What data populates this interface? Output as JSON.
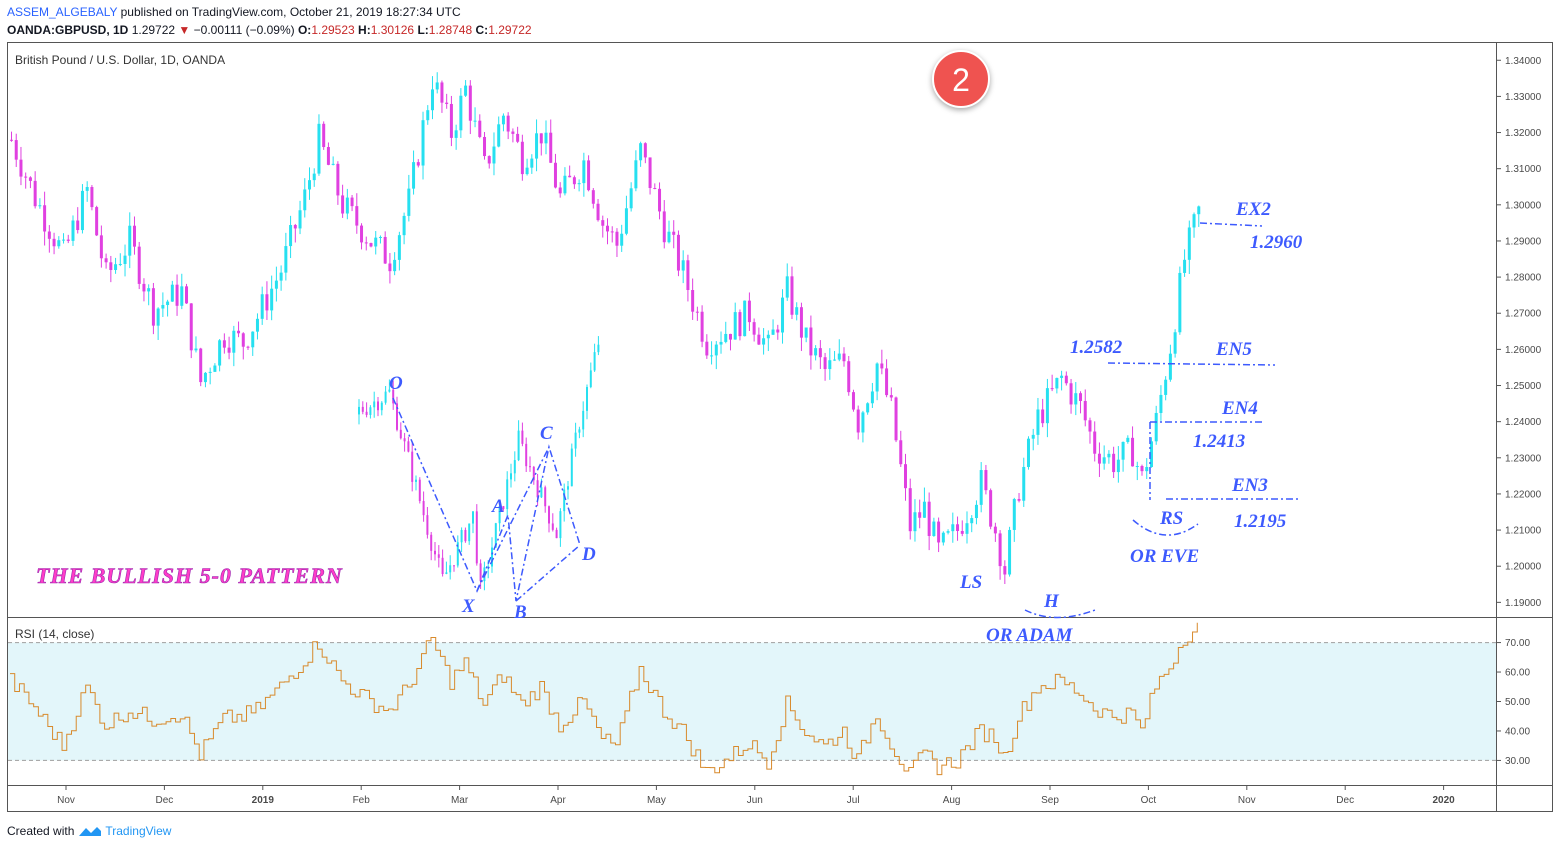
{
  "header": {
    "author": "ASSEM_ALGEBALY",
    "published": "published on TradingView.com, October 21, 2019 18:27:34 UTC",
    "symbol": "OANDA:GBPUSD, 1D",
    "last": "1.29722",
    "change": "−0.00111 (−0.09%)",
    "o_label": "O:",
    "o": "1.29523",
    "h_label": "H:",
    "h": "1.30126",
    "l_label": "L:",
    "l": "1.28748",
    "c_label": "C:",
    "c": "1.29722"
  },
  "footer": {
    "created_with": "Created with",
    "brand": "TradingView"
  },
  "marker": "2",
  "annotations": {
    "pattern_title": "THE BULLISH 5-0 PATTERN",
    "o": "O",
    "x": "X",
    "a": "A",
    "b": "B",
    "c": "C",
    "d": "D",
    "ls": "LS",
    "h": "H",
    "rs": "RS",
    "or_adam": "OR ADAM",
    "or_eve": "OR EVE",
    "ex2": "EX2",
    "ex2_price": "1.2960",
    "en5": "EN5",
    "en5_price": "1.2582",
    "en4": "EN4",
    "en4_price": "1.2413",
    "en3": "EN3",
    "en3_price": "1.2195"
  },
  "colors": {
    "up": "#26e0f0",
    "down": "#e040e0",
    "rsi": "#d88a2c",
    "annotation": "#3d5afe",
    "pattern_title": "#ff3dc8",
    "marker": "#ef5350",
    "rsi_band": "#e3f6fa"
  },
  "chart_data": [
    {
      "type": "candlestick",
      "title": "British Pound / U.S. Dollar, 1D, OANDA",
      "x_ticks": [
        "Nov",
        "Dec",
        "2019",
        "Feb",
        "Mar",
        "Apr",
        "May",
        "Jun",
        "Jul",
        "Aug",
        "Sep",
        "Oct",
        "Nov",
        "Dec",
        "2020"
      ],
      "y_ticks": [
        1.19,
        1.2,
        1.21,
        1.22,
        1.23,
        1.24,
        1.25,
        1.26,
        1.27,
        1.28,
        1.29,
        1.3,
        1.31,
        1.32,
        1.33,
        1.34
      ],
      "y_tick_labels": [
        "1.19000",
        "1.20000",
        "1.21000",
        "1.22000",
        "1.23000",
        "1.24000",
        "1.25000",
        "1.26000",
        "1.27000",
        "1.28000",
        "1.29000",
        "1.30000",
        "1.31000",
        "1.32000",
        "1.33000",
        "1.34000"
      ],
      "ylim": [
        1.1865,
        1.3445
      ],
      "series": [
        {
          "name": "GBPUSD",
          "close_path": [
            [
              0,
              1.318
            ],
            [
              5,
              1.302
            ],
            [
              11,
              1.286
            ],
            [
              16,
              1.304
            ],
            [
              20,
              1.28
            ],
            [
              25,
              1.29
            ],
            [
              30,
              1.271
            ],
            [
              36,
              1.276
            ],
            [
              40,
              1.251
            ],
            [
              45,
              1.264
            ],
            [
              49,
              1.262
            ],
            [
              52,
              1.269
            ],
            [
              57,
              1.282
            ],
            [
              62,
              1.302
            ],
            [
              65,
              1.318
            ],
            [
              70,
              1.3
            ],
            [
              76,
              1.29
            ],
            [
              80,
              1.285
            ],
            [
              84,
              1.301
            ],
            [
              89,
              1.335
            ],
            [
              93,
              1.32
            ],
            [
              96,
              1.332
            ],
            [
              100,
              1.31
            ],
            [
              104,
              1.325
            ],
            [
              108,
              1.313
            ],
            [
              112,
              1.32
            ],
            [
              116,
              1.302
            ],
            [
              121,
              1.312
            ],
            [
              125,
              1.295
            ],
            [
              128,
              1.289
            ],
            [
              133,
              1.315
            ],
            [
              138,
              1.294
            ],
            [
              142,
              1.281
            ],
            [
              147,
              1.262
            ],
            [
              152,
              1.266
            ],
            [
              156,
              1.27
            ],
            [
              160,
              1.26
            ],
            [
              164,
              1.276
            ],
            [
              168,
              1.262
            ],
            [
              172,
              1.254
            ],
            [
              176,
              1.257
            ],
            [
              179,
              1.24
            ],
            [
              183,
              1.256
            ],
            [
              186,
              1.243
            ],
            [
              190,
              1.211
            ],
            [
              193,
              1.216
            ],
            [
              196,
              1.204
            ],
            [
              200,
              1.21
            ],
            [
              205,
              1.223
            ],
            [
              208,
              1.21
            ],
            [
              210,
              1.199
            ],
            [
              213,
              1.222
            ],
            [
              217,
              1.241
            ],
            [
              222,
              1.252
            ],
            [
              226,
              1.244
            ],
            [
              229,
              1.233
            ],
            [
              233,
              1.229
            ],
            [
              237,
              1.232
            ],
            [
              239,
              1.224
            ],
            [
              242,
              1.24
            ],
            [
              245,
              1.261
            ],
            [
              248,
              1.285
            ],
            [
              251,
              1.298
            ],
            [
              252,
              1.297
            ]
          ]
        }
      ],
      "overlay_pattern": {
        "points": [
          "O",
          "X",
          "A",
          "B",
          "C",
          "D"
        ],
        "values": [
          1.248,
          1.196,
          1.214,
          1.193,
          1.235,
          1.209
        ],
        "breakout_high": 1.262
      },
      "levels": [
        {
          "label": "EX2",
          "price": 1.296
        },
        {
          "label": "EN5",
          "price": 1.2582
        },
        {
          "label": "EN4",
          "price": 1.2413
        },
        {
          "label": "EN3",
          "price": 1.2195
        }
      ]
    },
    {
      "type": "line",
      "title": "RSI (14, close)",
      "y_ticks": [
        30,
        40,
        50,
        60,
        70
      ],
      "y_tick_labels": [
        "30.00",
        "40.00",
        "50.00",
        "60.00",
        "70.00"
      ],
      "ylim": [
        22,
        78
      ],
      "band": [
        30,
        70
      ],
      "series": [
        {
          "name": "RSI",
          "path": [
            [
              0,
              57
            ],
            [
              5,
              48
            ],
            [
              11,
              35
            ],
            [
              16,
              55
            ],
            [
              20,
              42
            ],
            [
              25,
              47
            ],
            [
              30,
              44
            ],
            [
              36,
              46
            ],
            [
              40,
              32
            ],
            [
              45,
              44
            ],
            [
              49,
              45
            ],
            [
              52,
              47
            ],
            [
              57,
              55
            ],
            [
              62,
              64
            ],
            [
              65,
              70
            ],
            [
              70,
              57
            ],
            [
              76,
              50
            ],
            [
              80,
              47
            ],
            [
              84,
              55
            ],
            [
              89,
              71
            ],
            [
              93,
              57
            ],
            [
              96,
              63
            ],
            [
              100,
              49
            ],
            [
              104,
              59
            ],
            [
              108,
              49
            ],
            [
              112,
              55
            ],
            [
              116,
              42
            ],
            [
              121,
              50
            ],
            [
              125,
              37
            ],
            [
              128,
              35
            ],
            [
              133,
              61
            ],
            [
              138,
              47
            ],
            [
              142,
              40
            ],
            [
              147,
              26
            ],
            [
              152,
              31
            ],
            [
              156,
              36
            ],
            [
              160,
              30
            ],
            [
              164,
              49
            ],
            [
              168,
              40
            ],
            [
              172,
              35
            ],
            [
              176,
              40
            ],
            [
              179,
              30
            ],
            [
              183,
              46
            ],
            [
              186,
              36
            ],
            [
              190,
              25
            ],
            [
              193,
              32
            ],
            [
              196,
              28
            ],
            [
              200,
              30
            ],
            [
              205,
              40
            ],
            [
              208,
              38
            ],
            [
              210,
              31
            ],
            [
              213,
              45
            ],
            [
              217,
              55
            ],
            [
              222,
              57
            ],
            [
              226,
              53
            ],
            [
              229,
              48
            ],
            [
              233,
              45
            ],
            [
              237,
              46
            ],
            [
              239,
              40
            ],
            [
              242,
              55
            ],
            [
              245,
              62
            ],
            [
              248,
              72
            ],
            [
              251,
              75
            ],
            [
              252,
              74
            ]
          ]
        }
      ]
    }
  ]
}
